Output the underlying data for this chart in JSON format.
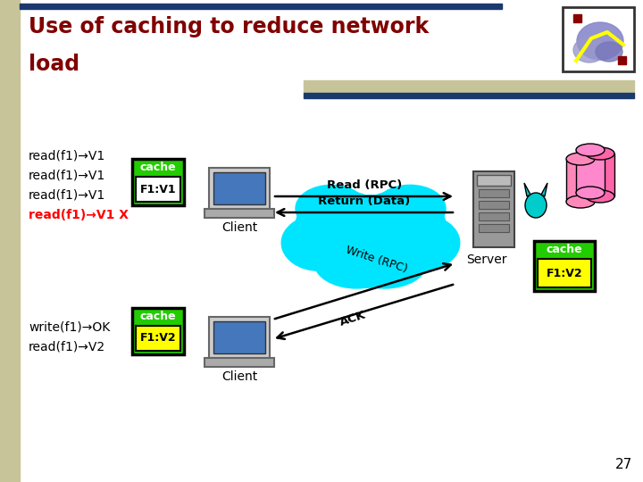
{
  "title_line1": "Use of caching to reduce network",
  "title_line2": "load",
  "title_color": "#800000",
  "bg_color": "#ffffff",
  "left_stripe_color": "#c8c49a",
  "top_bar_color": "#1a3a6e",
  "tan_bar_color": "#c8c49a",
  "text_lines_black": [
    "read(f1)→V1",
    "read(f1)→V1",
    "read(f1)→V1"
  ],
  "text_line_red": "read(f1)→V1 X",
  "text_write": "write(f1)→OK",
  "text_read_v2": "read(f1)→V2",
  "cache_top_label": "cache",
  "cache_top_content": "F1:V1",
  "cache_bottom_label": "cache",
  "cache_bottom_content": "F1:V2",
  "cache_server_label": "cache",
  "cache_server_content": "F1:V2",
  "green_color": "#22cc00",
  "yellow_color": "#ffff00",
  "client_label": "Client",
  "server_label": "Server",
  "read_rpc_label": "Read (RPC)",
  "return_data_label": "Return (Data)",
  "write_rpc_label": "Write (RPC)",
  "ack_label": "ACK",
  "cloud_color": "#00e5ff",
  "page_number": "27",
  "arrow_color": "#000000"
}
